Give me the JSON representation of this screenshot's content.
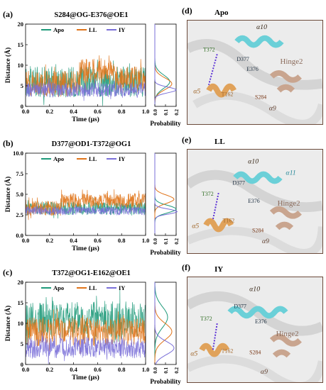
{
  "colors": {
    "apo": "#1f9a7a",
    "ll": "#e0741a",
    "iy": "#7a6fd8",
    "helix": "#6bd0d8",
    "loop": "#e0a25a",
    "hinge": "#c9a58f",
    "link": "#5a2fd6"
  },
  "panels": {
    "a": {
      "label": "(a)",
      "title": "S284@OG-E376@OE1"
    },
    "b": {
      "label": "(b)",
      "title": "D377@OD1-T372@OG1"
    },
    "c": {
      "label": "(c)",
      "title": "T372@OG1-E162@OE1"
    },
    "d": {
      "label": "(d)",
      "state": "Apo"
    },
    "e": {
      "label": "(e)",
      "state": "LL"
    },
    "f": {
      "label": "(f)",
      "state": "IY"
    }
  },
  "axis_text": {
    "ylabel": "Distance (Å)",
    "xlabel": "Time (μs)",
    "prob_label": "Probability"
  },
  "structure_labels": {
    "d": [
      "α10",
      "T372",
      "D377",
      "E376",
      "α5",
      "T162",
      "S284",
      "Hinge2",
      "α9"
    ],
    "e": [
      "α10",
      "T372",
      "D377",
      "α11",
      "E376",
      "Hinge2",
      "α5",
      "T162",
      "S284",
      "α9"
    ],
    "f": [
      "α10",
      "D377",
      "T372",
      "E376",
      "Hinge2",
      "α5",
      "T162",
      "S284",
      "α9"
    ]
  },
  "chart_data": [
    {
      "type": "line",
      "title": "S284@OG-E376@OE1",
      "xlabel": "Time (μs)",
      "ylabel": "Distance (Å)",
      "xlim": [
        0.0,
        1.0
      ],
      "ylim": [
        0,
        20
      ],
      "xticks": [
        "0.0",
        "0.2",
        "0.4",
        "0.6",
        "0.8",
        "1.0"
      ],
      "yticks": [
        "0",
        "5",
        "10",
        "15",
        "20"
      ],
      "legend": [
        "Apo",
        "LL",
        "IY"
      ],
      "series": [
        {
          "name": "Apo",
          "baseline": 6,
          "noise": 3.8,
          "segments": [
            [
              0.0,
              1.0,
              6
            ]
          ]
        },
        {
          "name": "LL",
          "baseline": 5.5,
          "noise": 3.2,
          "segments": [
            [
              0.0,
              0.45,
              5.5
            ],
            [
              0.45,
              0.75,
              8.5
            ],
            [
              0.75,
              1.0,
              6.5
            ]
          ]
        },
        {
          "name": "IY",
          "baseline": 4,
          "noise": 1.8,
          "segments": [
            [
              0.0,
              1.0,
              4
            ]
          ]
        }
      ],
      "probability": {
        "xticks": [
          "0.0",
          "0.1",
          "0.2"
        ],
        "peaks": [
          {
            "name": "Apo",
            "mean": 6.0,
            "sd": 1.6,
            "max": 0.14
          },
          {
            "name": "LL",
            "mean": 5.5,
            "sd": 1.4,
            "max": 0.16
          },
          {
            "name": "IY",
            "mean": 4.0,
            "sd": 0.7,
            "max": 0.2
          }
        ]
      }
    },
    {
      "type": "line",
      "title": "D377@OD1-T372@OG1",
      "xlabel": "Time (μs)",
      "ylabel": "Distance (Å)",
      "xlim": [
        0.0,
        1.0
      ],
      "ylim": [
        0,
        10
      ],
      "xticks": [
        "0.0",
        "0.2",
        "0.4",
        "0.6",
        "0.8",
        "1.0"
      ],
      "yticks": [
        "0.0",
        "2.5",
        "5.0",
        "7.5",
        "10.0"
      ],
      "legend": [
        "Apo",
        "LL",
        "IY"
      ],
      "series": [
        {
          "name": "Apo",
          "baseline": 3.3,
          "noise": 0.8,
          "segments": [
            [
              0.0,
              1.0,
              3.3
            ]
          ]
        },
        {
          "name": "LL",
          "baseline": 4.0,
          "noise": 0.9,
          "segments": [
            [
              0.0,
              0.3,
              3.3
            ],
            [
              0.3,
              1.0,
              4.2
            ]
          ]
        },
        {
          "name": "IY",
          "baseline": 3.0,
          "noise": 0.5,
          "segments": [
            [
              0.0,
              1.0,
              3.0
            ]
          ]
        }
      ],
      "probability": {
        "xticks": [
          "0.0",
          "0.1",
          "0.2"
        ],
        "peaks": [
          {
            "name": "Apo",
            "mean": 3.2,
            "sd": 0.45,
            "max": 0.2
          },
          {
            "name": "LL",
            "mean": 4.4,
            "sd": 0.5,
            "max": 0.18
          },
          {
            "name": "IY",
            "mean": 2.9,
            "sd": 0.3,
            "max": 0.21
          }
        ]
      }
    },
    {
      "type": "line",
      "title": "T372@OG1-E162@OE1",
      "xlabel": "Time (μs)",
      "ylabel": "Distance (Å)",
      "xlim": [
        0.0,
        1.0
      ],
      "ylim": [
        0,
        20
      ],
      "xticks": [
        "0.0",
        "0.2",
        "0.4",
        "0.6",
        "0.8",
        "1.0"
      ],
      "yticks": [
        "0",
        "5",
        "10",
        "15",
        "20"
      ],
      "legend": [
        "Apo",
        "LL",
        "IY"
      ],
      "series": [
        {
          "name": "Apo",
          "baseline": 11,
          "noise": 4.5,
          "segments": [
            [
              0.0,
              1.0,
              11
            ]
          ]
        },
        {
          "name": "LL",
          "baseline": 8,
          "noise": 3.5,
          "segments": [
            [
              0.0,
              1.0,
              8
            ]
          ]
        },
        {
          "name": "IY",
          "baseline": 4,
          "noise": 2.5,
          "segments": [
            [
              0.0,
              1.0,
              4
            ]
          ]
        }
      ],
      "probability": {
        "xticks": [
          "0.0",
          "0.1",
          "0.2"
        ],
        "peaks": [
          {
            "name": "Apo",
            "mean": 11.5,
            "sd": 2.5,
            "max": 0.12
          },
          {
            "name": "LL",
            "mean": 8.0,
            "sd": 2.0,
            "max": 0.16
          },
          {
            "name": "IY",
            "mean": 4.0,
            "sd": 1.6,
            "max": 0.18
          }
        ]
      }
    }
  ]
}
